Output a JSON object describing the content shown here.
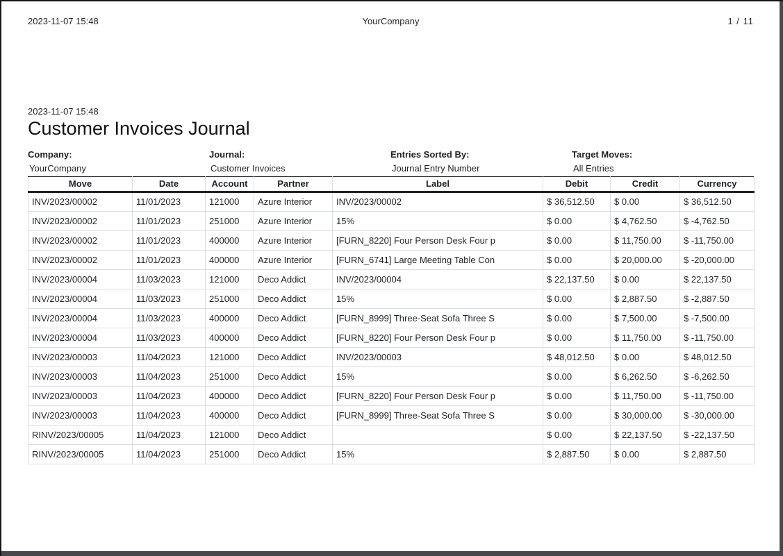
{
  "page_header": {
    "datetime": "2023-11-07 15:48",
    "company": "YourCompany",
    "page_indicator": "1 / 11"
  },
  "report": {
    "datetime": "2023-11-07 15:48",
    "title": "Customer Invoices Journal",
    "meta": [
      {
        "label": "Company:",
        "value": "YourCompany"
      },
      {
        "label": "Journal:",
        "value": "Customer Invoices"
      },
      {
        "label": "Entries Sorted By:",
        "value": "Journal Entry Number"
      },
      {
        "label": "Target Moves:",
        "value": "All Entries"
      }
    ]
  },
  "table": {
    "columns": [
      "Move",
      "Date",
      "Account",
      "Partner",
      "Label",
      "Debit",
      "Credit",
      "Currency"
    ],
    "rows": [
      [
        "INV/2023/00002",
        "11/01/2023",
        "121000",
        "Azure Interior",
        "INV/2023/00002",
        "$ 36,512.50",
        "$ 0.00",
        "$ 36,512.50"
      ],
      [
        "INV/2023/00002",
        "11/01/2023",
        "251000",
        "Azure Interior",
        "15%",
        "$ 0.00",
        "$ 4,762.50",
        "$ -4,762.50"
      ],
      [
        "INV/2023/00002",
        "11/01/2023",
        "400000",
        "Azure Interior",
        "[FURN_8220] Four Person Desk Four p",
        "$ 0.00",
        "$ 11,750.00",
        "$ -11,750.00"
      ],
      [
        "INV/2023/00002",
        "11/01/2023",
        "400000",
        "Azure Interior",
        "[FURN_6741] Large Meeting Table Con",
        "$ 0.00",
        "$ 20,000.00",
        "$ -20,000.00"
      ],
      [
        "INV/2023/00004",
        "11/03/2023",
        "121000",
        "Deco Addict",
        "INV/2023/00004",
        "$ 22,137.50",
        "$ 0.00",
        "$ 22,137.50"
      ],
      [
        "INV/2023/00004",
        "11/03/2023",
        "251000",
        "Deco Addict",
        "15%",
        "$ 0.00",
        "$ 2,887.50",
        "$ -2,887.50"
      ],
      [
        "INV/2023/00004",
        "11/03/2023",
        "400000",
        "Deco Addict",
        "[FURN_8999] Three-Seat Sofa Three S",
        "$ 0.00",
        "$ 7,500.00",
        "$ -7,500.00"
      ],
      [
        "INV/2023/00004",
        "11/03/2023",
        "400000",
        "Deco Addict",
        "[FURN_8220] Four Person Desk Four p",
        "$ 0.00",
        "$ 11,750.00",
        "$ -11,750.00"
      ],
      [
        "INV/2023/00003",
        "11/04/2023",
        "121000",
        "Deco Addict",
        "INV/2023/00003",
        "$ 48,012.50",
        "$ 0.00",
        "$ 48,012.50"
      ],
      [
        "INV/2023/00003",
        "11/04/2023",
        "251000",
        "Deco Addict",
        "15%",
        "$ 0.00",
        "$ 6,262.50",
        "$ -6,262.50"
      ],
      [
        "INV/2023/00003",
        "11/04/2023",
        "400000",
        "Deco Addict",
        "[FURN_8220] Four Person Desk Four p",
        "$ 0.00",
        "$ 11,750.00",
        "$ -11,750.00"
      ],
      [
        "INV/2023/00003",
        "11/04/2023",
        "400000",
        "Deco Addict",
        "[FURN_8999] Three-Seat Sofa Three S",
        "$ 0.00",
        "$ 30,000.00",
        "$ -30,000.00"
      ],
      [
        "RINV/2023/00005",
        "11/04/2023",
        "121000",
        "Deco Addict",
        "",
        "$ 0.00",
        "$ 22,137.50",
        "$ -22,137.50"
      ],
      [
        "RINV/2023/00005",
        "11/04/2023",
        "251000",
        "Deco Addict",
        "15%",
        "$ 2,887.50",
        "$ 0.00",
        "$ 2,887.50"
      ]
    ]
  },
  "colors": {
    "frame": "#47494c",
    "page": "#ffffff",
    "text": "#1f2124",
    "grid_light": "#d8dde2",
    "grid_dark": "#1f2124"
  }
}
